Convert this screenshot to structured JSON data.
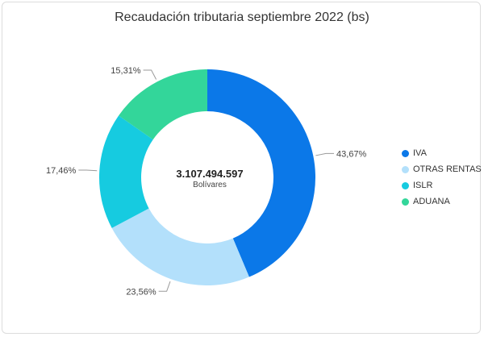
{
  "chart_data": {
    "type": "pie",
    "title": "Recaudación tributaria septiembre 2022 (bs)",
    "center_value": "3.107.494.597",
    "center_label": "Bolívares",
    "legend_position": "right",
    "slices": [
      {
        "label": "IVA",
        "value": 43.67,
        "value_label": "43,67%",
        "color": "#0b78e8"
      },
      {
        "label": "OTRAS RENTAS",
        "value": 23.56,
        "value_label": "23,56%",
        "color": "#b3e0fb"
      },
      {
        "label": "ISLR",
        "value": 17.46,
        "value_label": "17,46%",
        "color": "#16cbe0"
      },
      {
        "label": "ADUANA",
        "value": 15.31,
        "value_label": "15,31%",
        "color": "#33d69a"
      }
    ]
  }
}
